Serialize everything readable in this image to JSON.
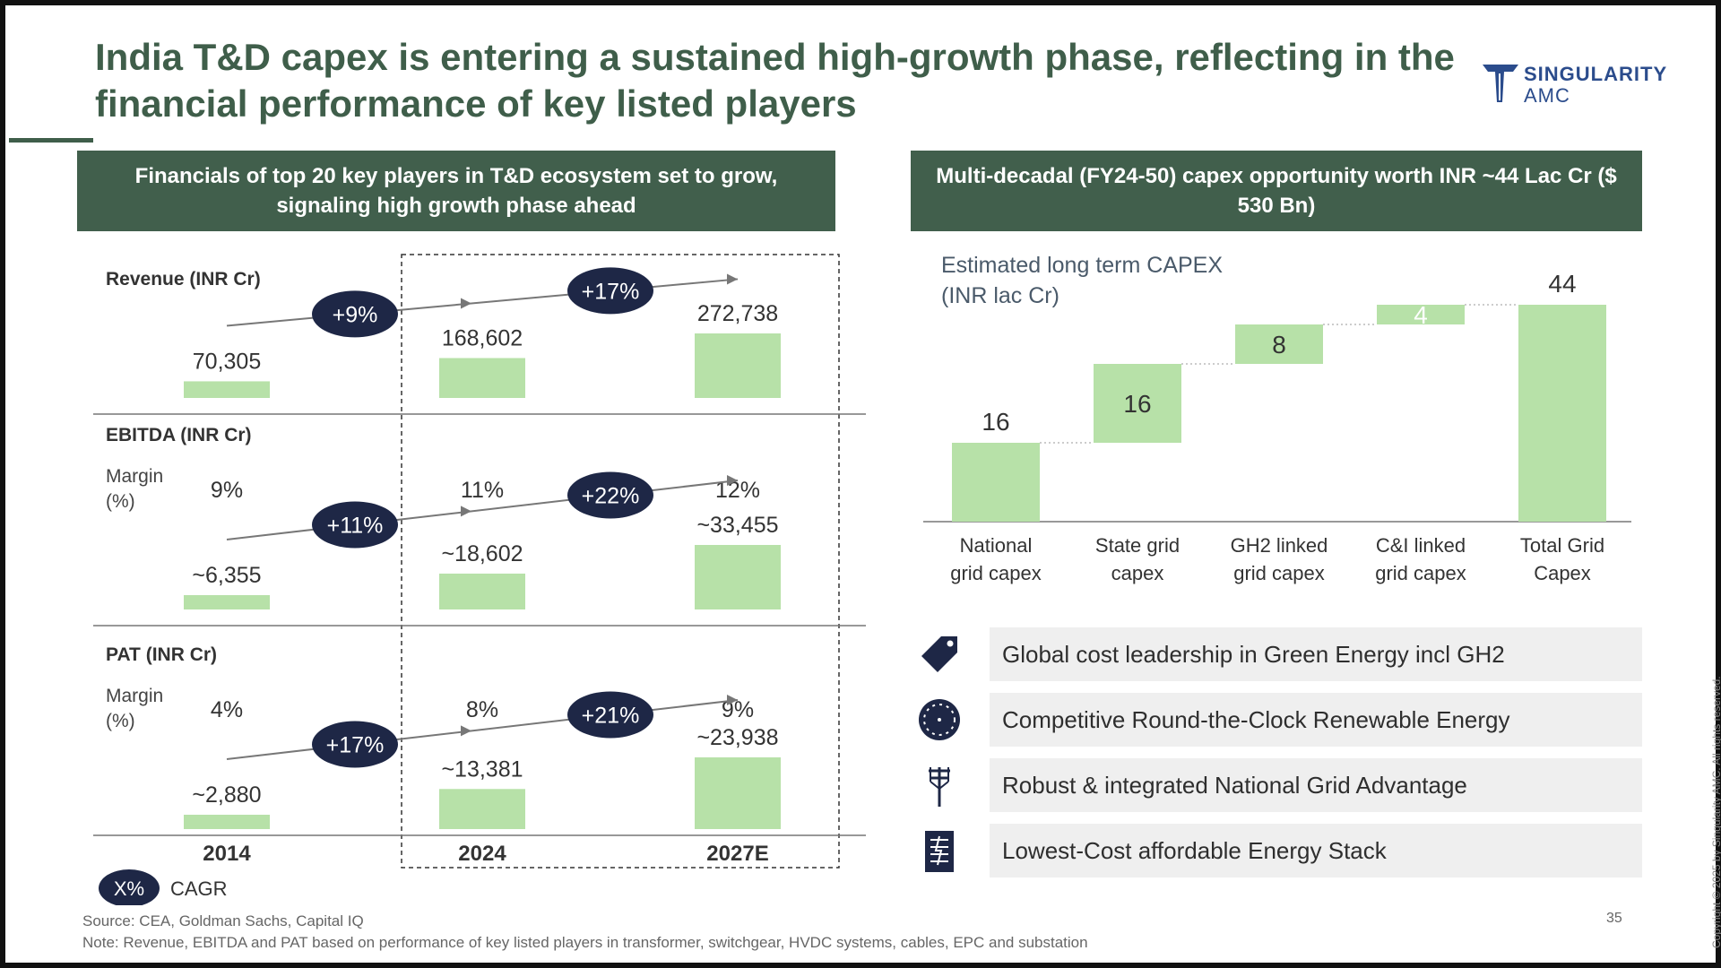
{
  "title": "India T&D capex is entering a sustained high-growth phase, reflecting in the financial performance of key listed players",
  "logo": {
    "line1": "SINGULARITY",
    "line2": "AMC"
  },
  "left_panel": {
    "header": "Financials of top 20 key players in T&D ecosystem set to grow, signaling high growth phase ahead",
    "margin_label_line1": "Margin",
    "margin_label_line2": "(%)",
    "legend_symbol": "X%",
    "legend_label": "CAGR"
  },
  "right_panel": {
    "header": "Multi-decadal (FY24-50) capex opportunity worth INR ~44 Lac Cr ($ 530 Bn)",
    "chart_title_line1": "Estimated long term CAPEX",
    "chart_title_line2": "(INR lac Cr)"
  },
  "features": [
    {
      "icon": "price-tag-icon",
      "text": "Global cost leadership in Green Energy incl GH2"
    },
    {
      "icon": "clock-icon",
      "text": "Competitive Round-the-Clock Renewable Energy"
    },
    {
      "icon": "transmission-tower-icon",
      "text": "Robust & integrated National Grid Advantage"
    },
    {
      "icon": "stack-document-icon",
      "text": "Lowest-Cost affordable Energy Stack"
    }
  ],
  "source": "Source: CEA, Goldman Sachs, Capital IQ",
  "note": "Note: Revenue, EBITDA and PAT based on performance of  key listed players in transformer, switchgear, HVDC systems, cables, EPC and  substation",
  "page_number": "35",
  "copyright": "Copyright © 2025 by Singularity AMC. All rights reserved.",
  "colors": {
    "bar": "#b7e1a8",
    "navy": "#1e2746",
    "green_dark": "#415f4c",
    "title_green": "#3f5e4a"
  },
  "chart_data": [
    {
      "type": "bar",
      "title": "Revenue (INR Cr)",
      "categories": [
        "2014",
        "2024",
        "2027E"
      ],
      "values": [
        70305,
        168602,
        272738
      ],
      "value_labels": [
        "70,305",
        "168,602",
        "272,738"
      ],
      "margins": null,
      "cagr": [
        "+9%",
        "+17%"
      ]
    },
    {
      "type": "bar",
      "title": "EBITDA (INR Cr)",
      "categories": [
        "2014",
        "2024",
        "2027E"
      ],
      "values": [
        6355,
        18602,
        33455
      ],
      "value_labels": [
        "~6,355",
        "~18,602",
        "~33,455"
      ],
      "margins": [
        "9%",
        "11%",
        "12%"
      ],
      "cagr": [
        "+11%",
        "+22%"
      ]
    },
    {
      "type": "bar",
      "title": "PAT (INR Cr)",
      "categories": [
        "2014",
        "2024",
        "2027E"
      ],
      "values": [
        2880,
        13381,
        23938
      ],
      "value_labels": [
        "~2,880",
        "~13,381",
        "~23,938"
      ],
      "margins": [
        "4%",
        "8%",
        "9%"
      ],
      "cagr": [
        "+17%",
        "+21%"
      ]
    },
    {
      "type": "bar",
      "subtype": "waterfall",
      "title": "Estimated long term CAPEX (INR lac Cr)",
      "categories": [
        "National grid capex",
        "State grid capex",
        "GH2 linked grid capex",
        "C&I linked grid capex",
        "Total Grid Capex"
      ],
      "category_lines": [
        [
          "National",
          "grid capex"
        ],
        [
          "State grid",
          "capex"
        ],
        [
          "GH2 linked",
          "grid capex"
        ],
        [
          "C&I linked",
          "grid capex"
        ],
        [
          "Total Grid",
          "Capex"
        ]
      ],
      "values": [
        16,
        16,
        8,
        4,
        44
      ],
      "value_labels": [
        "16",
        "16",
        "8",
        "4",
        "44"
      ],
      "ylim": [
        0,
        44
      ]
    }
  ]
}
